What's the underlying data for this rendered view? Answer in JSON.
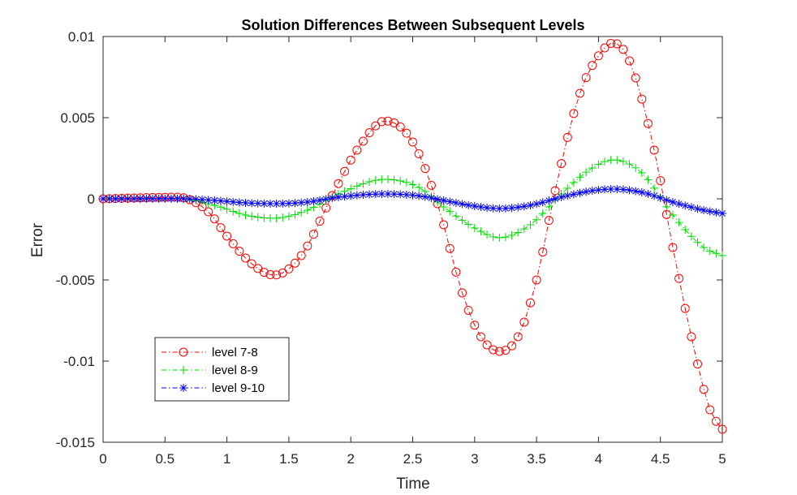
{
  "chart_data": {
    "type": "line",
    "title": "Solution Differences Between Subsequent Levels",
    "xlabel": "Time",
    "ylabel": "Error",
    "xlim": [
      0,
      5
    ],
    "ylim": [
      -0.015,
      0.01
    ],
    "xticks": [
      0,
      0.5,
      1,
      1.5,
      2,
      2.5,
      3,
      3.5,
      4,
      4.5,
      5
    ],
    "xtick_labels": [
      "0",
      "0.5",
      "1",
      "1.5",
      "2",
      "2.5",
      "3",
      "3.5",
      "4",
      "4.5",
      "5"
    ],
    "yticks": [
      -0.015,
      -0.01,
      -0.005,
      0,
      0.005,
      0.01
    ],
    "ytick_labels": [
      "-0.015",
      "-0.01",
      "-0.005",
      "0",
      "0.005",
      "0.01"
    ],
    "grid": false,
    "legend_position": "bottom-left",
    "x_samples": {
      "start": 0,
      "end": 5,
      "count": 101
    },
    "series": [
      {
        "name": "level 7-8",
        "color": "#ff0000",
        "marker": "circle",
        "line_style": "dash-dot",
        "keypoints": [
          [
            0,
            0
          ],
          [
            0.6,
            0.0001
          ],
          [
            0.85,
            -0.0008
          ],
          [
            1.0,
            -0.0023
          ],
          [
            1.2,
            -0.004
          ],
          [
            1.38,
            -0.0047
          ],
          [
            1.6,
            -0.0035
          ],
          [
            1.85,
            0.0002
          ],
          [
            2.05,
            0.003
          ],
          [
            2.28,
            0.0048
          ],
          [
            2.5,
            0.0035
          ],
          [
            2.7,
            -0.0003
          ],
          [
            2.9,
            -0.0058
          ],
          [
            3.05,
            -0.0085
          ],
          [
            3.2,
            -0.0094
          ],
          [
            3.35,
            -0.0085
          ],
          [
            3.5,
            -0.005
          ],
          [
            3.65,
            0.0005
          ],
          [
            3.85,
            0.0065
          ],
          [
            4.05,
            0.0093
          ],
          [
            4.12,
            0.0096
          ],
          [
            4.25,
            0.0085
          ],
          [
            4.45,
            0.003
          ],
          [
            4.6,
            -0.003
          ],
          [
            4.75,
            -0.0085
          ],
          [
            4.9,
            -0.013
          ],
          [
            5.0,
            -0.0142
          ]
        ]
      },
      {
        "name": "level 8-9",
        "color": "#00dd00",
        "marker": "plus",
        "line_style": "dash-dot",
        "keypoints": [
          [
            0,
            0
          ],
          [
            0.6,
            2e-05
          ],
          [
            0.9,
            -0.0004
          ],
          [
            1.15,
            -0.001
          ],
          [
            1.38,
            -0.0012
          ],
          [
            1.65,
            -0.0007
          ],
          [
            1.9,
            0.0003
          ],
          [
            2.28,
            0.0012
          ],
          [
            2.55,
            0.0007
          ],
          [
            2.75,
            -0.0005
          ],
          [
            3.0,
            -0.0018
          ],
          [
            3.2,
            -0.0024
          ],
          [
            3.45,
            -0.0016
          ],
          [
            3.7,
            0.0003
          ],
          [
            3.95,
            0.0019
          ],
          [
            4.12,
            0.0024
          ],
          [
            4.35,
            0.0016
          ],
          [
            4.6,
            -0.001
          ],
          [
            4.85,
            -0.003
          ],
          [
            5.0,
            -0.0035
          ]
        ]
      },
      {
        "name": "level 9-10",
        "color": "#0000ff",
        "marker": "asterisk",
        "line_style": "dash-dot",
        "keypoints": [
          [
            0,
            0
          ],
          [
            0.6,
            1e-05
          ],
          [
            0.9,
            -0.0001
          ],
          [
            1.15,
            -0.00025
          ],
          [
            1.38,
            -0.0003
          ],
          [
            1.65,
            -0.0002
          ],
          [
            1.9,
            0.0001
          ],
          [
            2.28,
            0.0003
          ],
          [
            2.55,
            0.00018
          ],
          [
            2.75,
            -0.0001
          ],
          [
            3.0,
            -0.00045
          ],
          [
            3.2,
            -0.0006
          ],
          [
            3.45,
            -0.0004
          ],
          [
            3.7,
            0.0001
          ],
          [
            3.95,
            0.0005
          ],
          [
            4.12,
            0.0006
          ],
          [
            4.35,
            0.0004
          ],
          [
            4.6,
            -0.0002
          ],
          [
            4.85,
            -0.0007
          ],
          [
            5.0,
            -0.0009
          ]
        ]
      }
    ]
  }
}
